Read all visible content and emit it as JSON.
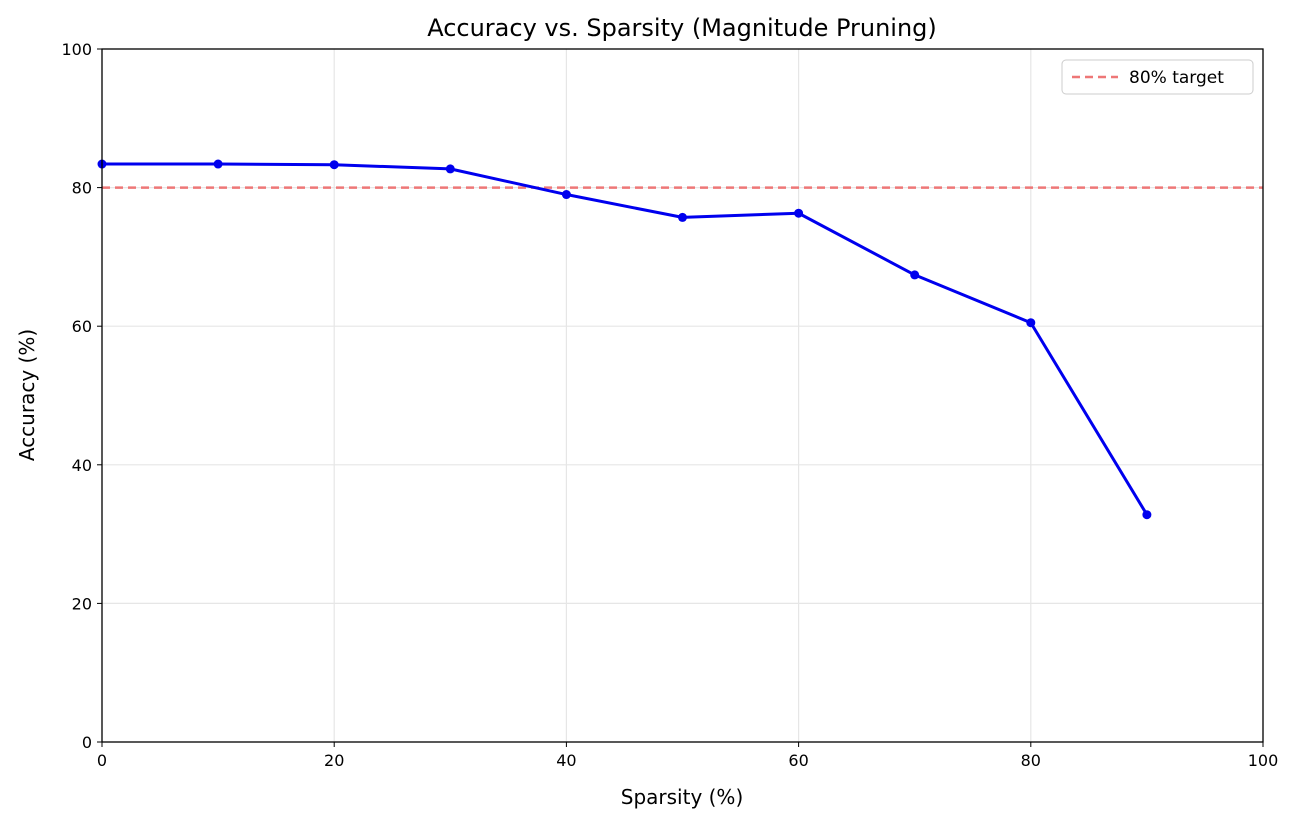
{
  "chart_data": {
    "type": "line",
    "title": "Accuracy vs. Sparsity (Magnitude Pruning)",
    "xlabel": "Sparsity (%)",
    "ylabel": "Accuracy (%)",
    "xlim": [
      0,
      100
    ],
    "ylim": [
      0,
      100
    ],
    "xticks": [
      0,
      20,
      40,
      60,
      80,
      100
    ],
    "yticks": [
      0,
      20,
      40,
      60,
      80,
      100
    ],
    "grid": true,
    "legend_position": "top-right",
    "series": [
      {
        "x": [
          0,
          10,
          20,
          30,
          40,
          50,
          60,
          70,
          80,
          90
        ],
        "y": [
          83.4,
          83.4,
          83.3,
          82.7,
          79.0,
          75.7,
          76.3,
          67.4,
          60.5,
          32.8
        ],
        "color": "#0000ee",
        "marker": "circle"
      }
    ],
    "reference_lines": [
      {
        "name": "80% target",
        "y": 80,
        "color": "#ee7777",
        "style": "dashed"
      }
    ]
  }
}
